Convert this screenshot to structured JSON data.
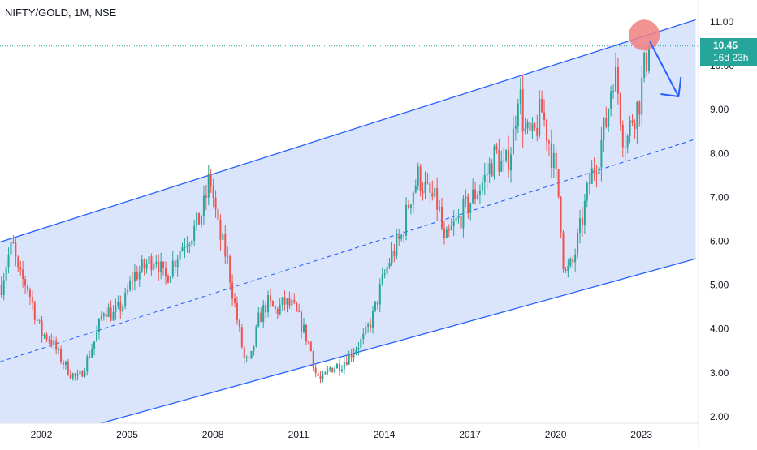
{
  "symbol": {
    "title": "NIFTY/GOLD, 1M, NSE"
  },
  "price_tag": {
    "value": "10.45",
    "countdown": "16d 23h",
    "color": "#26a69a"
  },
  "colors": {
    "up": "#26a69a",
    "down": "#ef5350",
    "channel_line": "#2962ff",
    "channel_fill": "#d6e1fb",
    "highlight_circle": "#f08080",
    "arrow": "#2962ff"
  },
  "chart_data": {
    "type": "candlestick",
    "title": "NIFTY/GOLD, 1M, NSE",
    "timeframe": "1M",
    "x_tick_labels": [
      "2002",
      "2005",
      "2008",
      "2011",
      "2014",
      "2017",
      "2020",
      "2023"
    ],
    "y_tick_labels": [
      "2.00",
      "3.00",
      "4.00",
      "5.00",
      "6.00",
      "7.00",
      "8.00",
      "9.00",
      "10.00",
      "11.00"
    ],
    "ylim": [
      1.85,
      11.5
    ],
    "xlim": [
      2000.55,
      2025.0
    ],
    "last_price": 10.45,
    "price_path": [
      [
        2000.6,
        5.0
      ],
      [
        2000.8,
        5.6
      ],
      [
        2001.0,
        5.9
      ],
      [
        2001.2,
        5.2
      ],
      [
        2001.5,
        5.0
      ],
      [
        2001.8,
        4.3
      ],
      [
        2002.0,
        3.9
      ],
      [
        2002.3,
        3.8
      ],
      [
        2002.6,
        3.4
      ],
      [
        2003.0,
        3.0
      ],
      [
        2003.3,
        2.85
      ],
      [
        2003.6,
        3.3
      ],
      [
        2003.9,
        3.8
      ],
      [
        2004.2,
        4.5
      ],
      [
        2004.5,
        4.3
      ],
      [
        2004.9,
        4.6
      ],
      [
        2005.2,
        5.2
      ],
      [
        2005.6,
        5.4
      ],
      [
        2006.0,
        5.7
      ],
      [
        2006.3,
        5.1
      ],
      [
        2006.6,
        5.5
      ],
      [
        2007.0,
        6.0
      ],
      [
        2007.4,
        6.3
      ],
      [
        2007.7,
        6.8
      ],
      [
        2007.9,
        7.5
      ],
      [
        2008.2,
        6.2
      ],
      [
        2008.5,
        5.6
      ],
      [
        2008.8,
        4.4
      ],
      [
        2009.1,
        3.3
      ],
      [
        2009.3,
        3.2
      ],
      [
        2009.6,
        4.2
      ],
      [
        2009.9,
        4.6
      ],
      [
        2010.2,
        4.4
      ],
      [
        2010.5,
        4.6
      ],
      [
        2010.8,
        4.5
      ],
      [
        2011.1,
        4.1
      ],
      [
        2011.4,
        3.6
      ],
      [
        2011.6,
        3.0
      ],
      [
        2011.8,
        2.8
      ],
      [
        2012.1,
        3.1
      ],
      [
        2012.5,
        3.2
      ],
      [
        2012.9,
        3.5
      ],
      [
        2013.3,
        3.8
      ],
      [
        2013.6,
        4.3
      ],
      [
        2013.9,
        5.0
      ],
      [
        2014.2,
        5.6
      ],
      [
        2014.6,
        6.1
      ],
      [
        2014.9,
        7.0
      ],
      [
        2015.2,
        7.5
      ],
      [
        2015.5,
        7.1
      ],
      [
        2015.9,
        6.8
      ],
      [
        2016.1,
        5.9
      ],
      [
        2016.4,
        6.3
      ],
      [
        2016.7,
        6.6
      ],
      [
        2017.1,
        7.0
      ],
      [
        2017.5,
        7.4
      ],
      [
        2017.9,
        8.0
      ],
      [
        2018.2,
        7.6
      ],
      [
        2018.5,
        8.3
      ],
      [
        2018.7,
        9.6
      ],
      [
        2018.9,
        8.5
      ],
      [
        2019.2,
        8.3
      ],
      [
        2019.5,
        9.0
      ],
      [
        2019.8,
        8.2
      ],
      [
        2020.0,
        7.5
      ],
      [
        2020.15,
        6.8
      ],
      [
        2020.3,
        5.2
      ],
      [
        2020.6,
        5.5
      ],
      [
        2020.9,
        6.4
      ],
      [
        2021.2,
        7.4
      ],
      [
        2021.5,
        8.0
      ],
      [
        2021.8,
        8.8
      ],
      [
        2022.0,
        9.9
      ],
      [
        2022.15,
        9.6
      ],
      [
        2022.35,
        8.5
      ],
      [
        2022.5,
        8.3
      ],
      [
        2022.7,
        8.9
      ],
      [
        2022.9,
        9.1
      ],
      [
        2023.1,
        9.9
      ],
      [
        2023.25,
        10.45
      ]
    ],
    "annotations": {
      "channel_upper": [
        [
          2000.55,
          5.98
        ],
        [
          2024.9,
          11.05
        ]
      ],
      "channel_lower": [
        [
          2003.8,
          1.8
        ],
        [
          2024.9,
          5.6
        ]
      ],
      "channel_mid": [
        [
          2000.55,
          3.25
        ],
        [
          2024.9,
          8.33
        ]
      ],
      "highlight_circle": [
        2023.1,
        10.7
      ],
      "arrow_from": [
        2023.3,
        10.55
      ],
      "arrow_to": [
        2024.3,
        9.3
      ],
      "last_price_line": 10.45
    }
  }
}
